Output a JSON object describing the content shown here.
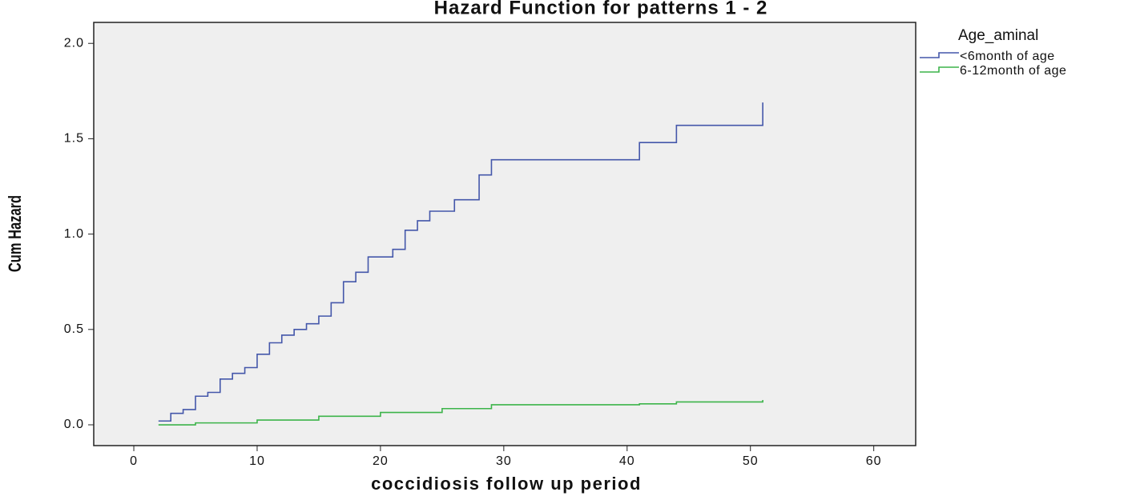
{
  "chart_data": {
    "type": "step-line",
    "title": "Hazard Function for patterns 1 - 2",
    "x_label": "coccidiosis follow up period",
    "y_label": "Cum Hazard",
    "legend_title": "Age_aminal",
    "legend_position": "right",
    "xlim": [
      -3.25,
      63.4
    ],
    "ylim": [
      -0.109,
      2.11
    ],
    "xticks": [
      0,
      10,
      20,
      30,
      40,
      50,
      60
    ],
    "yticks": [
      {
        "value": 0,
        "label": "0.0"
      },
      {
        "value": 0.5,
        "label": "0.5"
      },
      {
        "value": 1,
        "label": "1.0"
      },
      {
        "value": 1.5,
        "label": "1.5"
      },
      {
        "value": 2,
        "label": "2.0"
      }
    ],
    "series": [
      {
        "name": "<6month of age",
        "color": "#4457aa",
        "x": [
          2,
          3,
          4,
          5,
          6,
          7,
          8,
          9,
          10,
          11,
          12,
          13,
          14,
          15,
          16,
          17,
          18,
          19,
          21,
          22,
          23,
          24,
          26,
          28,
          29,
          41,
          44,
          51
        ],
        "values": [
          0.02,
          0.06,
          0.08,
          0.15,
          0.17,
          0.24,
          0.27,
          0.3,
          0.37,
          0.43,
          0.47,
          0.5,
          0.53,
          0.57,
          0.64,
          0.75,
          0.8,
          0.88,
          0.92,
          1.02,
          1.07,
          1.12,
          1.18,
          1.31,
          1.39,
          1.48,
          1.57,
          1.69
        ]
      },
      {
        "name": "6-12month of age",
        "color": "#3cb44a",
        "x": [
          2,
          5,
          10,
          15,
          20,
          25,
          29,
          41,
          44,
          51
        ],
        "values": [
          0.0,
          0.01,
          0.025,
          0.045,
          0.065,
          0.085,
          0.105,
          0.11,
          0.12,
          0.13
        ]
      }
    ]
  }
}
